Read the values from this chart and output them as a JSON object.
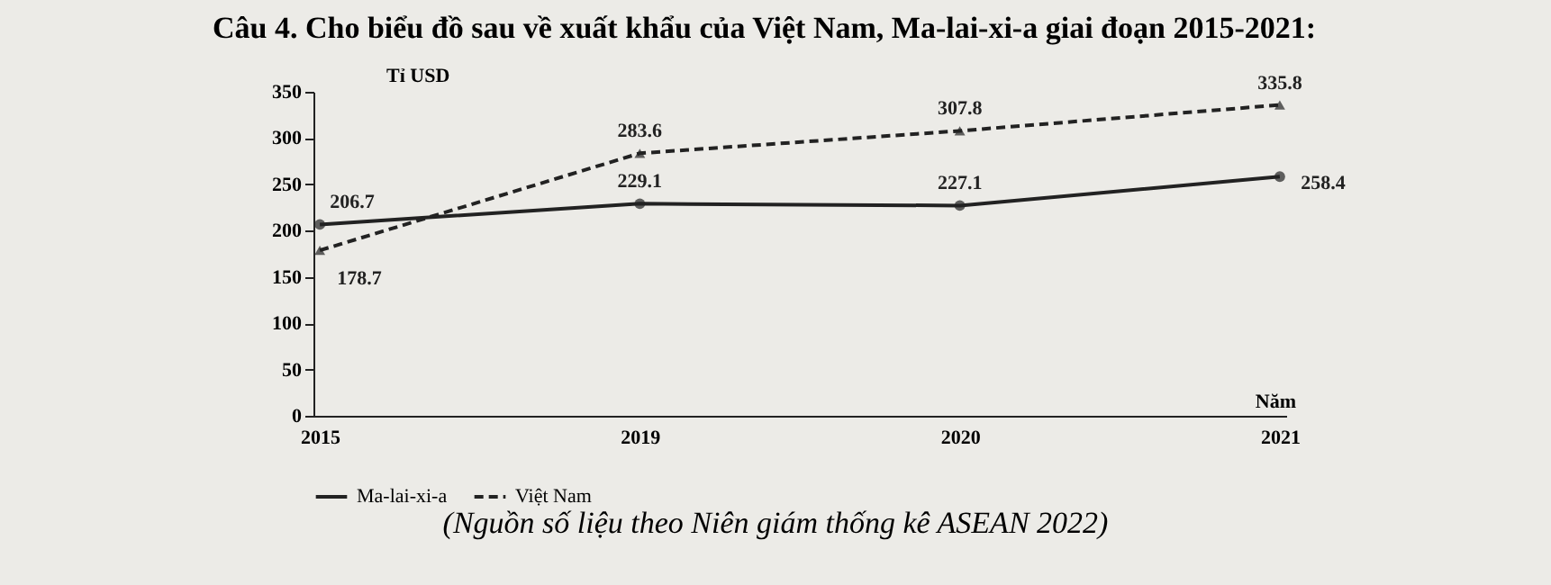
{
  "chart_data": {
    "type": "line",
    "title": "Câu 4. Cho biểu đồ sau về xuất khẩu của Việt Nam, Ma-lai-xi-a giai đoạn 2015-2021:",
    "ylabel": "Tỉ USD",
    "xlabel": "Năm",
    "categories": [
      "2015",
      "2019",
      "2020",
      "2021"
    ],
    "series": [
      {
        "name": "Ma-lai-xi-a",
        "color": "#222222",
        "values": [
          206.7,
          229.1,
          227.1,
          258.4
        ],
        "marker": "circle",
        "line_style": "solid"
      },
      {
        "name": "Việt Nam",
        "color": "#222222",
        "values": [
          178.7,
          283.6,
          307.8,
          335.8
        ],
        "marker": "triangle",
        "line_style": "dashed"
      }
    ],
    "ylim": [
      0,
      350
    ],
    "yticks": [
      0,
      50,
      100,
      150,
      200,
      250,
      300,
      350
    ],
    "data_labels": true,
    "grid": false,
    "legend": "bottom",
    "annotations": [
      "(Nguồn số liệu theo Niên giám thống kê ASEAN 2022)"
    ]
  }
}
